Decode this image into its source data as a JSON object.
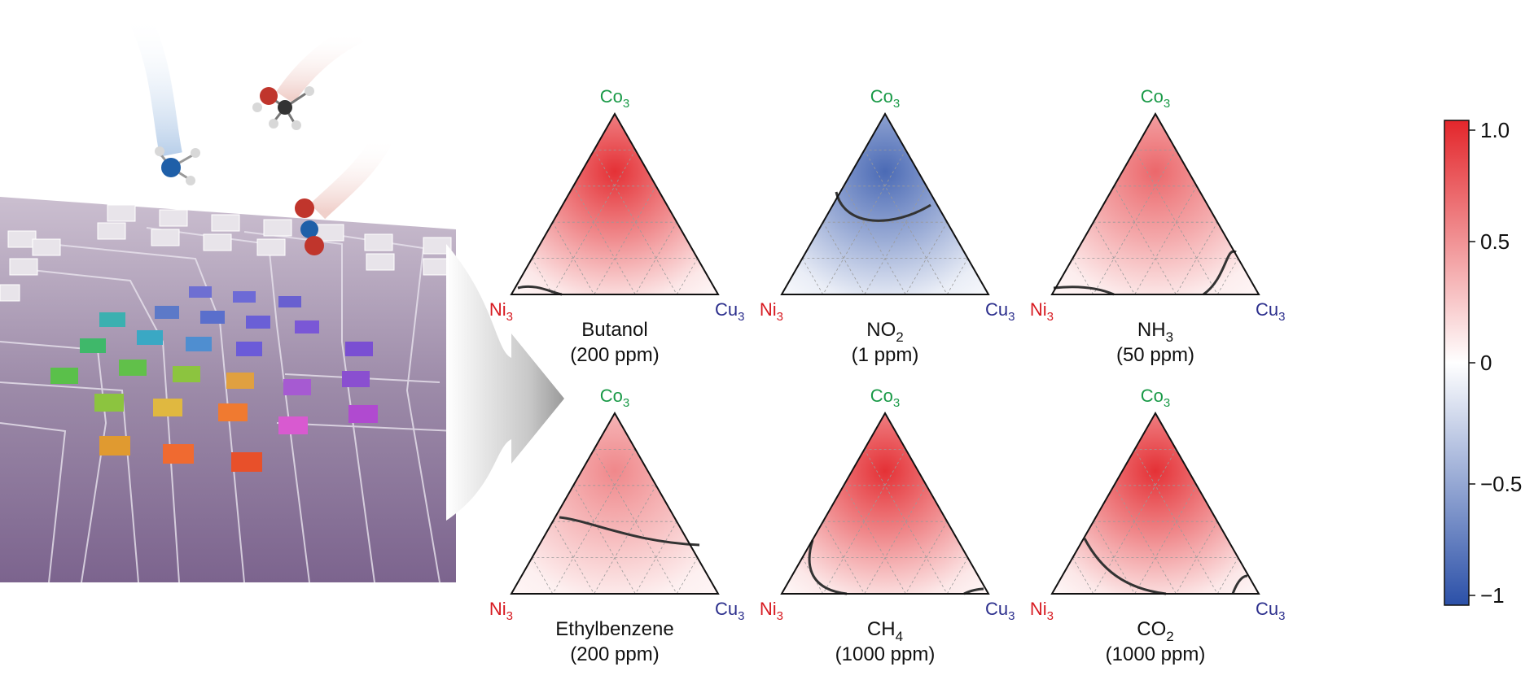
{
  "vertices": {
    "top": "Co",
    "left": "Ni",
    "right": "Cu",
    "subscript": "3"
  },
  "colors": {
    "co": "#1a9a48",
    "ni": "#d71a21",
    "cu": "#2b2e8c",
    "positive": "#e3262b",
    "negative": "#2b50a8",
    "zero": "#ffffff",
    "contour": "#333333"
  },
  "plots": [
    {
      "name": "Butanol",
      "sub": "",
      "after": "",
      "conc": "(200 ppm)",
      "peak": 0.95
    },
    {
      "name": "NO",
      "sub": "2",
      "after": "",
      "conc": "(1 ppm)",
      "peak": -0.85
    },
    {
      "name": "NH",
      "sub": "3",
      "after": "",
      "conc": "(50 ppm)",
      "peak": 0.7
    },
    {
      "name": "Ethylbenzene",
      "sub": "",
      "after": "",
      "conc": "(200 ppm)",
      "peak": 0.55
    },
    {
      "name": "CH",
      "sub": "4",
      "after": "",
      "conc": "(1000 ppm)",
      "peak": 0.95
    },
    {
      "name": "CO",
      "sub": "2",
      "after": "",
      "conc": "(1000 ppm)",
      "peak": 0.95
    }
  ],
  "colorbar": {
    "ticks": [
      "1.0",
      "0.5",
      "0",
      "−0.5",
      "−1"
    ],
    "tick_values": [
      1.0,
      0.5,
      0,
      -0.5,
      -1
    ],
    "range": [
      -1,
      1
    ]
  }
}
